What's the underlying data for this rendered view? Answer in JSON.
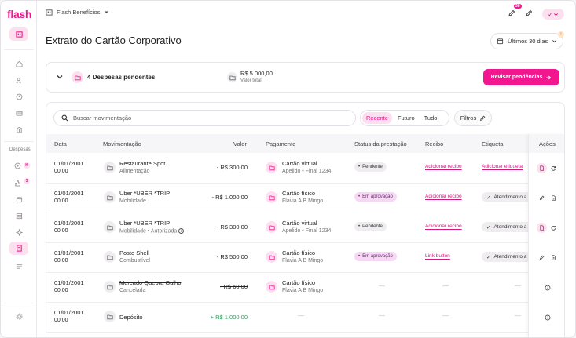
{
  "brand": {
    "logo": "flash",
    "accent": "#f2178e"
  },
  "sidebar": {
    "section_label": "Despesas",
    "badge_a": "K",
    "badge_b": "3"
  },
  "topbar": {
    "company": "Flash Benefícios",
    "notif_count": "38",
    "user_initial": "✓"
  },
  "page": {
    "title": "Extrato do Cartão Corporativo",
    "period": "Últimos 30 dias",
    "period_badge": "!"
  },
  "pending": {
    "label": "4 Despesas pendentes",
    "total_value": "R$ 5.000,00",
    "total_label": "Valor total",
    "review_button": "Revisar pendências"
  },
  "toolbar": {
    "search_placeholder": "Buscar movimentação",
    "segments": [
      "Recente",
      "Futuro",
      "Tudo"
    ],
    "filters_label": "Filtros"
  },
  "table": {
    "headers": {
      "data": "Data",
      "mov": "Movimentação",
      "valor": "Valor",
      "pag": "Pagamento",
      "status": "Status da prestação",
      "recibo": "Recibo",
      "etiqueta": "Etiqueta",
      "acoes": "Ações"
    },
    "rows": [
      {
        "date": "01/01/2001",
        "time": "00:00",
        "name": "Restaurante Spot",
        "category": "Alimentação",
        "value": "- R$ 300,00",
        "pay": "Cartão virtual",
        "pay_sub": "Apelido • Final 1234",
        "status": "Pendente",
        "receipt": "Adicionar recibo",
        "tag": "Adicionar etiqueta"
      },
      {
        "date": "01/01/2001",
        "time": "00:00",
        "name": "Uber *UBER *TRIP",
        "category": "Mobilidade",
        "value": "- R$ 1.000,00",
        "pay": "Cartão físico",
        "pay_sub": "Flavia A B Mingo",
        "status": "Em aprovação",
        "receipt": "Adicionar recibo",
        "tag": "Atendimento a"
      },
      {
        "date": "01/01/2001",
        "time": "00:00",
        "name": "Uber *UBER *TRIP",
        "category": "Mobilidade • Autorizada",
        "value": "- R$ 300,00",
        "pay": "Cartão virtual",
        "pay_sub": "Apelido • Final 1234",
        "status": "Pendente",
        "receipt": "Adicionar recibo",
        "tag": "Atendimento a"
      },
      {
        "date": "01/01/2001",
        "time": "00:00",
        "name": "Posto Shell",
        "category": "Combustível",
        "value": "- R$ 500,00",
        "pay": "Cartão físico",
        "pay_sub": "Flavia A B Mingo",
        "status": "Em aprovação",
        "receipt": "Link button",
        "tag": "Atendimento a"
      },
      {
        "date": "01/01/2001",
        "time": "00:00",
        "name": "Mercado Quebra Galho",
        "category": "Cancelada",
        "value": "- R$ 60,00",
        "pay": "Cartão físico",
        "pay_sub": "Flavia A B Mingo",
        "status": "—",
        "receipt": "—",
        "tag": "—"
      },
      {
        "date": "01/01/2001",
        "time": "00:00",
        "name": "Depósito",
        "category": "",
        "value": "+ R$ 1.000,00",
        "pay": "—",
        "pay_sub": "",
        "status": "—",
        "receipt": "—",
        "tag": "—"
      }
    ]
  }
}
